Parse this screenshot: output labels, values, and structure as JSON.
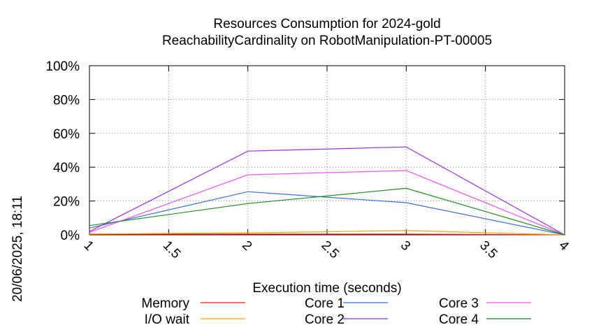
{
  "chart_data": {
    "type": "line",
    "title": "Resources Consumption for 2024-gold",
    "subtitle": "ReachabilityCardinality on RobotManipulation-PT-00005",
    "xlabel": "Execution time (seconds)",
    "ylabel": "",
    "side_label": "20/06/2025, 18:11",
    "xlim": [
      1,
      4
    ],
    "ylim": [
      0,
      100
    ],
    "x_ticks": [
      "1",
      "1.5",
      "2",
      "2.5",
      "3",
      "3.5",
      "4"
    ],
    "y_ticks": [
      "0%",
      "20%",
      "40%",
      "60%",
      "80%",
      "100%"
    ],
    "grid": true,
    "legend_position": "bottom",
    "series": [
      {
        "name": "Memory",
        "color": "#e41a1c",
        "x": [
          1,
          2,
          3,
          4
        ],
        "values": [
          0.3,
          0.4,
          0.4,
          0
        ]
      },
      {
        "name": "I/O wait",
        "color": "#f5a300",
        "x": [
          1,
          2,
          3,
          4
        ],
        "values": [
          0.5,
          1.2,
          2.5,
          0
        ]
      },
      {
        "name": "Core 1",
        "color": "#3a6fd8",
        "x": [
          1,
          2,
          3,
          4
        ],
        "values": [
          4,
          25.5,
          19,
          0
        ]
      },
      {
        "name": "Core 2",
        "color": "#9b30e0",
        "x": [
          1,
          2,
          3,
          4
        ],
        "values": [
          2,
          49.5,
          52,
          0
        ]
      },
      {
        "name": "Core 3",
        "color": "#f050f0",
        "x": [
          1,
          2,
          3,
          4
        ],
        "values": [
          1.5,
          35.5,
          38,
          0
        ]
      },
      {
        "name": "Core 4",
        "color": "#1e8c1e",
        "x": [
          1,
          2,
          3,
          4
        ],
        "values": [
          5.5,
          18.5,
          27.5,
          0
        ]
      }
    ]
  }
}
